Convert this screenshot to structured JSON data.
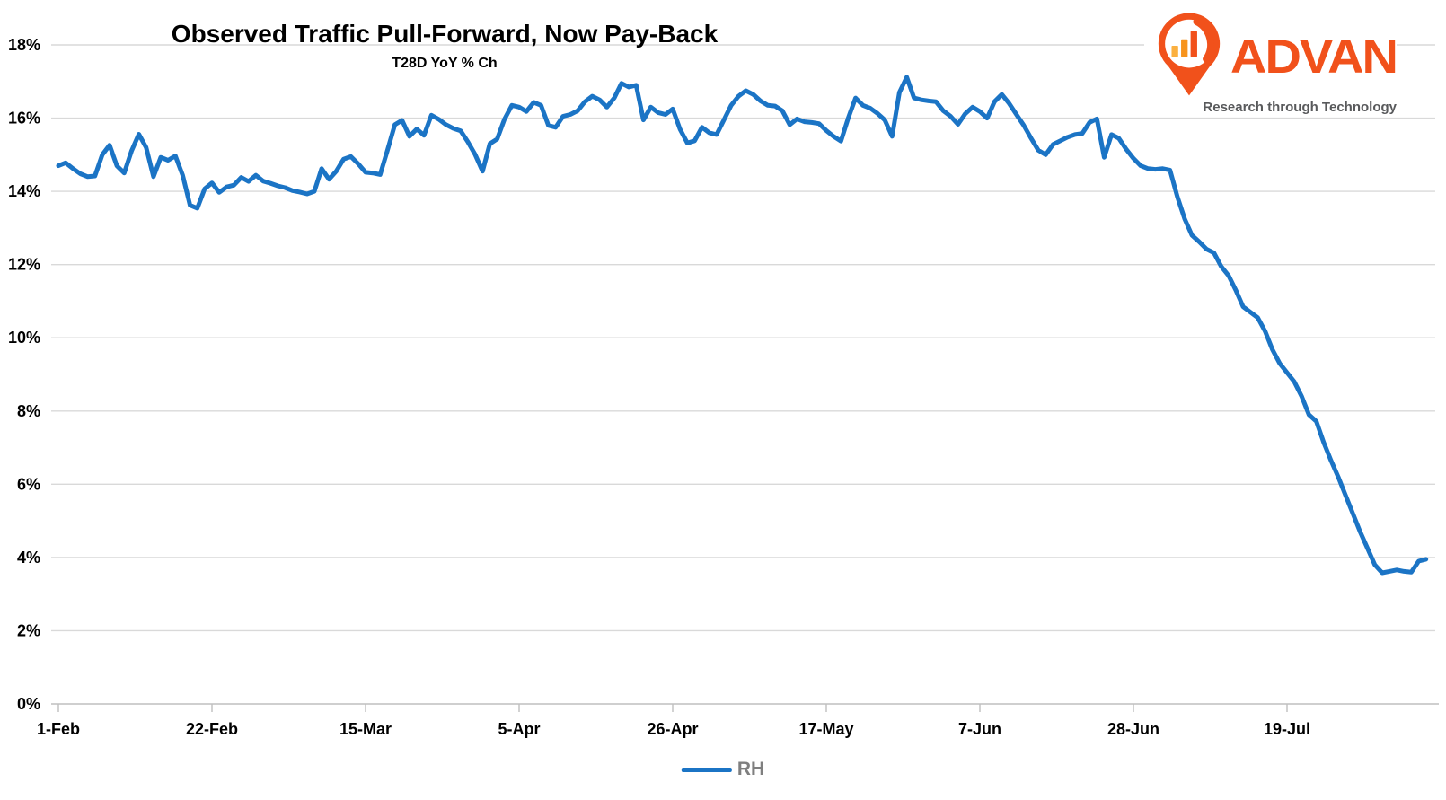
{
  "title": "Observed Traffic Pull-Forward, Now Pay-Back",
  "subtitle": "T28D YoY % Ch",
  "logo": {
    "name": "ADVAN",
    "tagline": "Research through Technology",
    "pin_icon": "location-pin-with-bar-chart",
    "orange": "#F1511B",
    "bar_yellow": "#FBB040",
    "bar_orange": "#F7941D",
    "gray": "#58595b"
  },
  "legend": {
    "series_label": "RH",
    "swatch_color": "#1B74C5"
  },
  "colors": {
    "line": "#1B74C5",
    "gridline": "#D9D9D9",
    "axis": "#BFBFBF",
    "label_text": "#000000",
    "legend_text": "#7f7f7f"
  },
  "chart_data": {
    "type": "line",
    "title": "Observed Traffic Pull-Forward, Now Pay-Back",
    "subtitle": "T28D YoY % Ch",
    "series_name": "RH",
    "x_unit": "daily dates, 1-Feb through early Aug",
    "x_tick_labels": [
      "1-Feb",
      "22-Feb",
      "15-Mar",
      "5-Apr",
      "26-Apr",
      "17-May",
      "7-Jun",
      "28-Jun",
      "19-Jul"
    ],
    "x_tick_interval_days": 21,
    "y_tick_labels": [
      "0%",
      "2%",
      "4%",
      "6%",
      "8%",
      "10%",
      "12%",
      "14%",
      "16%",
      "18%"
    ],
    "ylim": [
      0,
      18
    ],
    "grid": "horizontal",
    "legend_position": "bottom-center",
    "values": [
      14.7,
      14.78,
      14.62,
      14.48,
      14.4,
      14.42,
      15.0,
      15.26,
      14.7,
      14.5,
      15.1,
      15.56,
      15.2,
      14.4,
      14.93,
      14.85,
      14.97,
      14.44,
      13.62,
      13.54,
      14.07,
      14.23,
      13.97,
      14.12,
      14.17,
      14.38,
      14.27,
      14.44,
      14.28,
      14.22,
      14.15,
      14.1,
      14.02,
      13.98,
      13.93,
      14.0,
      14.62,
      14.33,
      14.55,
      14.88,
      14.95,
      14.75,
      14.52,
      14.5,
      14.46,
      15.12,
      15.82,
      15.94,
      15.5,
      15.7,
      15.53,
      16.08,
      15.97,
      15.82,
      15.72,
      15.65,
      15.35,
      15.0,
      14.55,
      15.3,
      15.43,
      15.97,
      16.35,
      16.3,
      16.18,
      16.43,
      16.35,
      15.8,
      15.75,
      16.05,
      16.1,
      16.2,
      16.45,
      16.6,
      16.5,
      16.3,
      16.55,
      16.95,
      16.85,
      16.9,
      15.95,
      16.3,
      16.15,
      16.1,
      16.25,
      15.7,
      15.32,
      15.38,
      15.75,
      15.6,
      15.55,
      15.95,
      16.35,
      16.6,
      16.75,
      16.65,
      16.47,
      16.35,
      16.33,
      16.2,
      15.82,
      15.98,
      15.9,
      15.88,
      15.85,
      15.66,
      15.5,
      15.37,
      16.0,
      16.55,
      16.35,
      16.27,
      16.13,
      15.95,
      15.5,
      16.7,
      17.12,
      16.55,
      16.5,
      16.47,
      16.45,
      16.2,
      16.05,
      15.83,
      16.12,
      16.3,
      16.18,
      16.0,
      16.45,
      16.65,
      16.4,
      16.1,
      15.8,
      15.45,
      15.12,
      15.0,
      15.28,
      15.38,
      15.48,
      15.55,
      15.58,
      15.88,
      15.98,
      14.93,
      15.55,
      15.45,
      15.15,
      14.9,
      14.7,
      14.62,
      14.6,
      14.62,
      14.58,
      13.85,
      13.25,
      12.8,
      12.62,
      12.42,
      12.32,
      11.95,
      11.7,
      11.3,
      10.85,
      10.7,
      10.55,
      10.18,
      9.68,
      9.3,
      9.05,
      8.8,
      8.4,
      7.9,
      7.72,
      7.15,
      6.65,
      6.2,
      5.7,
      5.2,
      4.7,
      4.25,
      3.8,
      3.58,
      3.62,
      3.66,
      3.62,
      3.6,
      3.9,
      3.95
    ]
  }
}
